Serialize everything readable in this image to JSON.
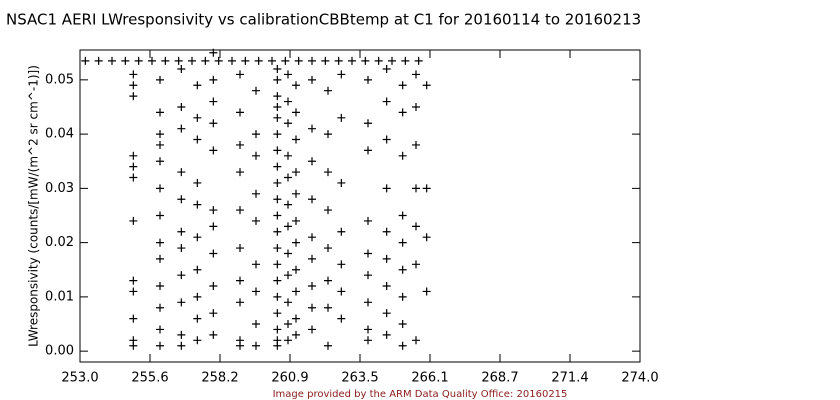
{
  "chart_data": {
    "type": "scatter",
    "title": "NSAC1 AERI LWresponsivity vs calibrationCBBtemp at C1 for 20160114 to 20160213",
    "y_label": "LWresponsivity (counts/[mW/(m^2 sr cm^-1)])",
    "footer": "Image provided by the ARM Data Quality Office: 20160215",
    "color": "#000000",
    "grid": false,
    "xlim": [
      253.0,
      274.0
    ],
    "ylim": [
      -0.002,
      0.0555
    ],
    "xticks": [
      {
        "value": 253.0,
        "label": "253.0"
      },
      {
        "value": 255.625,
        "label": "255.6"
      },
      {
        "value": 258.25,
        "label": "258.2"
      },
      {
        "value": 260.875,
        "label": "260.9"
      },
      {
        "value": 263.5,
        "label": "263.5"
      },
      {
        "value": 266.125,
        "label": "266.1"
      },
      {
        "value": 268.75,
        "label": "268.7"
      },
      {
        "value": 271.375,
        "label": "271.4"
      },
      {
        "value": 274.0,
        "label": "274.0"
      }
    ],
    "yticks": [
      {
        "value": 0,
        "label": "0.00"
      },
      0.01,
      0.02,
      0.03,
      0.04,
      0.05
    ],
    "x": [
      253.2,
      253.7,
      254.2,
      254.7,
      255.2,
      255.7,
      256.2,
      256.7,
      257.2,
      257.7,
      258.2,
      258.7,
      259.2,
      259.7,
      260.2,
      260.7,
      261.2,
      261.7,
      262.2,
      262.7,
      263.2,
      263.7,
      264.2,
      264.7,
      265.2,
      265.7,
      258.0,
      255.0,
      255.0,
      255.0,
      255.0,
      255.0,
      255.0,
      255.0,
      255.0,
      255.0,
      255.0,
      255.0,
      255.0,
      256.0,
      256.0,
      256.0,
      256.0,
      256.0,
      256.0,
      256.0,
      256.0,
      256.0,
      256.0,
      256.0,
      256.0,
      256.0,
      256.8,
      256.8,
      256.8,
      256.8,
      256.8,
      256.8,
      256.8,
      256.8,
      256.8,
      256.8,
      256.8,
      257.4,
      257.4,
      257.4,
      257.4,
      257.4,
      257.4,
      257.4,
      257.4,
      257.4,
      257.4,
      258.0,
      258.0,
      258.0,
      258.0,
      258.0,
      258.0,
      258.0,
      258.0,
      258.0,
      258.0,
      259.0,
      259.0,
      259.0,
      259.0,
      259.0,
      259.0,
      259.0,
      259.0,
      259.0,
      259.0,
      259.6,
      259.6,
      259.6,
      259.6,
      259.6,
      259.6,
      259.6,
      259.6,
      259.6,
      260.4,
      260.4,
      260.4,
      260.4,
      260.4,
      260.4,
      260.4,
      260.4,
      260.4,
      260.4,
      260.4,
      260.4,
      260.4,
      260.4,
      260.4,
      260.4,
      260.4,
      260.4,
      260.4,
      260.4,
      260.8,
      260.8,
      260.8,
      260.8,
      260.8,
      260.8,
      260.8,
      260.8,
      260.8,
      260.8,
      260.8,
      260.8,
      261.1,
      261.1,
      261.1,
      261.1,
      261.1,
      261.1,
      261.1,
      261.1,
      261.1,
      261.1,
      261.1,
      261.7,
      261.7,
      261.7,
      261.7,
      261.7,
      261.7,
      261.7,
      261.7,
      261.7,
      262.3,
      262.3,
      262.3,
      262.3,
      262.3,
      262.3,
      262.3,
      262.3,
      262.8,
      262.8,
      262.8,
      262.8,
      262.8,
      262.8,
      262.8,
      263.8,
      263.8,
      263.8,
      263.8,
      263.8,
      263.8,
      263.8,
      263.8,
      263.8,
      264.5,
      264.5,
      264.5,
      264.5,
      264.5,
      264.5,
      264.5,
      264.5,
      264.5,
      265.1,
      265.1,
      265.1,
      265.1,
      265.1,
      265.1,
      265.1,
      265.1,
      265.1,
      265.6,
      265.6,
      265.6,
      265.6,
      265.6,
      265.6,
      265.6,
      266.0,
      266.0,
      266.0,
      266.0
    ],
    "values": [
      0.0535,
      0.0535,
      0.0535,
      0.0535,
      0.0535,
      0.0535,
      0.0535,
      0.0535,
      0.0535,
      0.0535,
      0.0535,
      0.0535,
      0.0535,
      0.0535,
      0.0535,
      0.0535,
      0.0535,
      0.0535,
      0.0535,
      0.0535,
      0.0535,
      0.0535,
      0.0535,
      0.0535,
      0.0535,
      0.0535,
      0.055,
      0.051,
      0.049,
      0.047,
      0.036,
      0.034,
      0.032,
      0.024,
      0.013,
      0.011,
      0.006,
      0.002,
      0.001,
      0.05,
      0.044,
      0.04,
      0.038,
      0.035,
      0.03,
      0.025,
      0.02,
      0.017,
      0.012,
      0.008,
      0.004,
      0.001,
      0.052,
      0.045,
      0.041,
      0.033,
      0.028,
      0.022,
      0.019,
      0.014,
      0.009,
      0.003,
      0.001,
      0.049,
      0.043,
      0.039,
      0.031,
      0.027,
      0.021,
      0.015,
      0.01,
      0.006,
      0.002,
      0.05,
      0.046,
      0.042,
      0.037,
      0.026,
      0.023,
      0.018,
      0.012,
      0.007,
      0.003,
      0.051,
      0.044,
      0.038,
      0.033,
      0.026,
      0.019,
      0.013,
      0.009,
      0.002,
      0.001,
      0.048,
      0.04,
      0.036,
      0.029,
      0.024,
      0.016,
      0.011,
      0.005,
      0.001,
      0.052,
      0.05,
      0.047,
      0.045,
      0.043,
      0.04,
      0.037,
      0.034,
      0.031,
      0.028,
      0.025,
      0.022,
      0.019,
      0.016,
      0.013,
      0.01,
      0.007,
      0.004,
      0.002,
      0.001,
      0.051,
      0.046,
      0.042,
      0.036,
      0.032,
      0.027,
      0.023,
      0.018,
      0.014,
      0.009,
      0.005,
      0.002,
      0.049,
      0.044,
      0.039,
      0.033,
      0.029,
      0.024,
      0.02,
      0.015,
      0.011,
      0.006,
      0.003,
      0.05,
      0.041,
      0.035,
      0.028,
      0.021,
      0.017,
      0.012,
      0.008,
      0.004,
      0.048,
      0.04,
      0.033,
      0.026,
      0.019,
      0.013,
      0.008,
      0.001,
      0.051,
      0.043,
      0.031,
      0.022,
      0.016,
      0.011,
      0.006,
      0.05,
      0.042,
      0.037,
      0.024,
      0.018,
      0.014,
      0.009,
      0.004,
      0.002,
      0.052,
      0.046,
      0.039,
      0.03,
      0.022,
      0.017,
      0.012,
      0.007,
      0.003,
      0.049,
      0.044,
      0.036,
      0.025,
      0.02,
      0.015,
      0.01,
      0.005,
      0.001,
      0.051,
      0.045,
      0.038,
      0.03,
      0.023,
      0.016,
      0.002,
      0.049,
      0.03,
      0.021,
      0.011
    ]
  }
}
